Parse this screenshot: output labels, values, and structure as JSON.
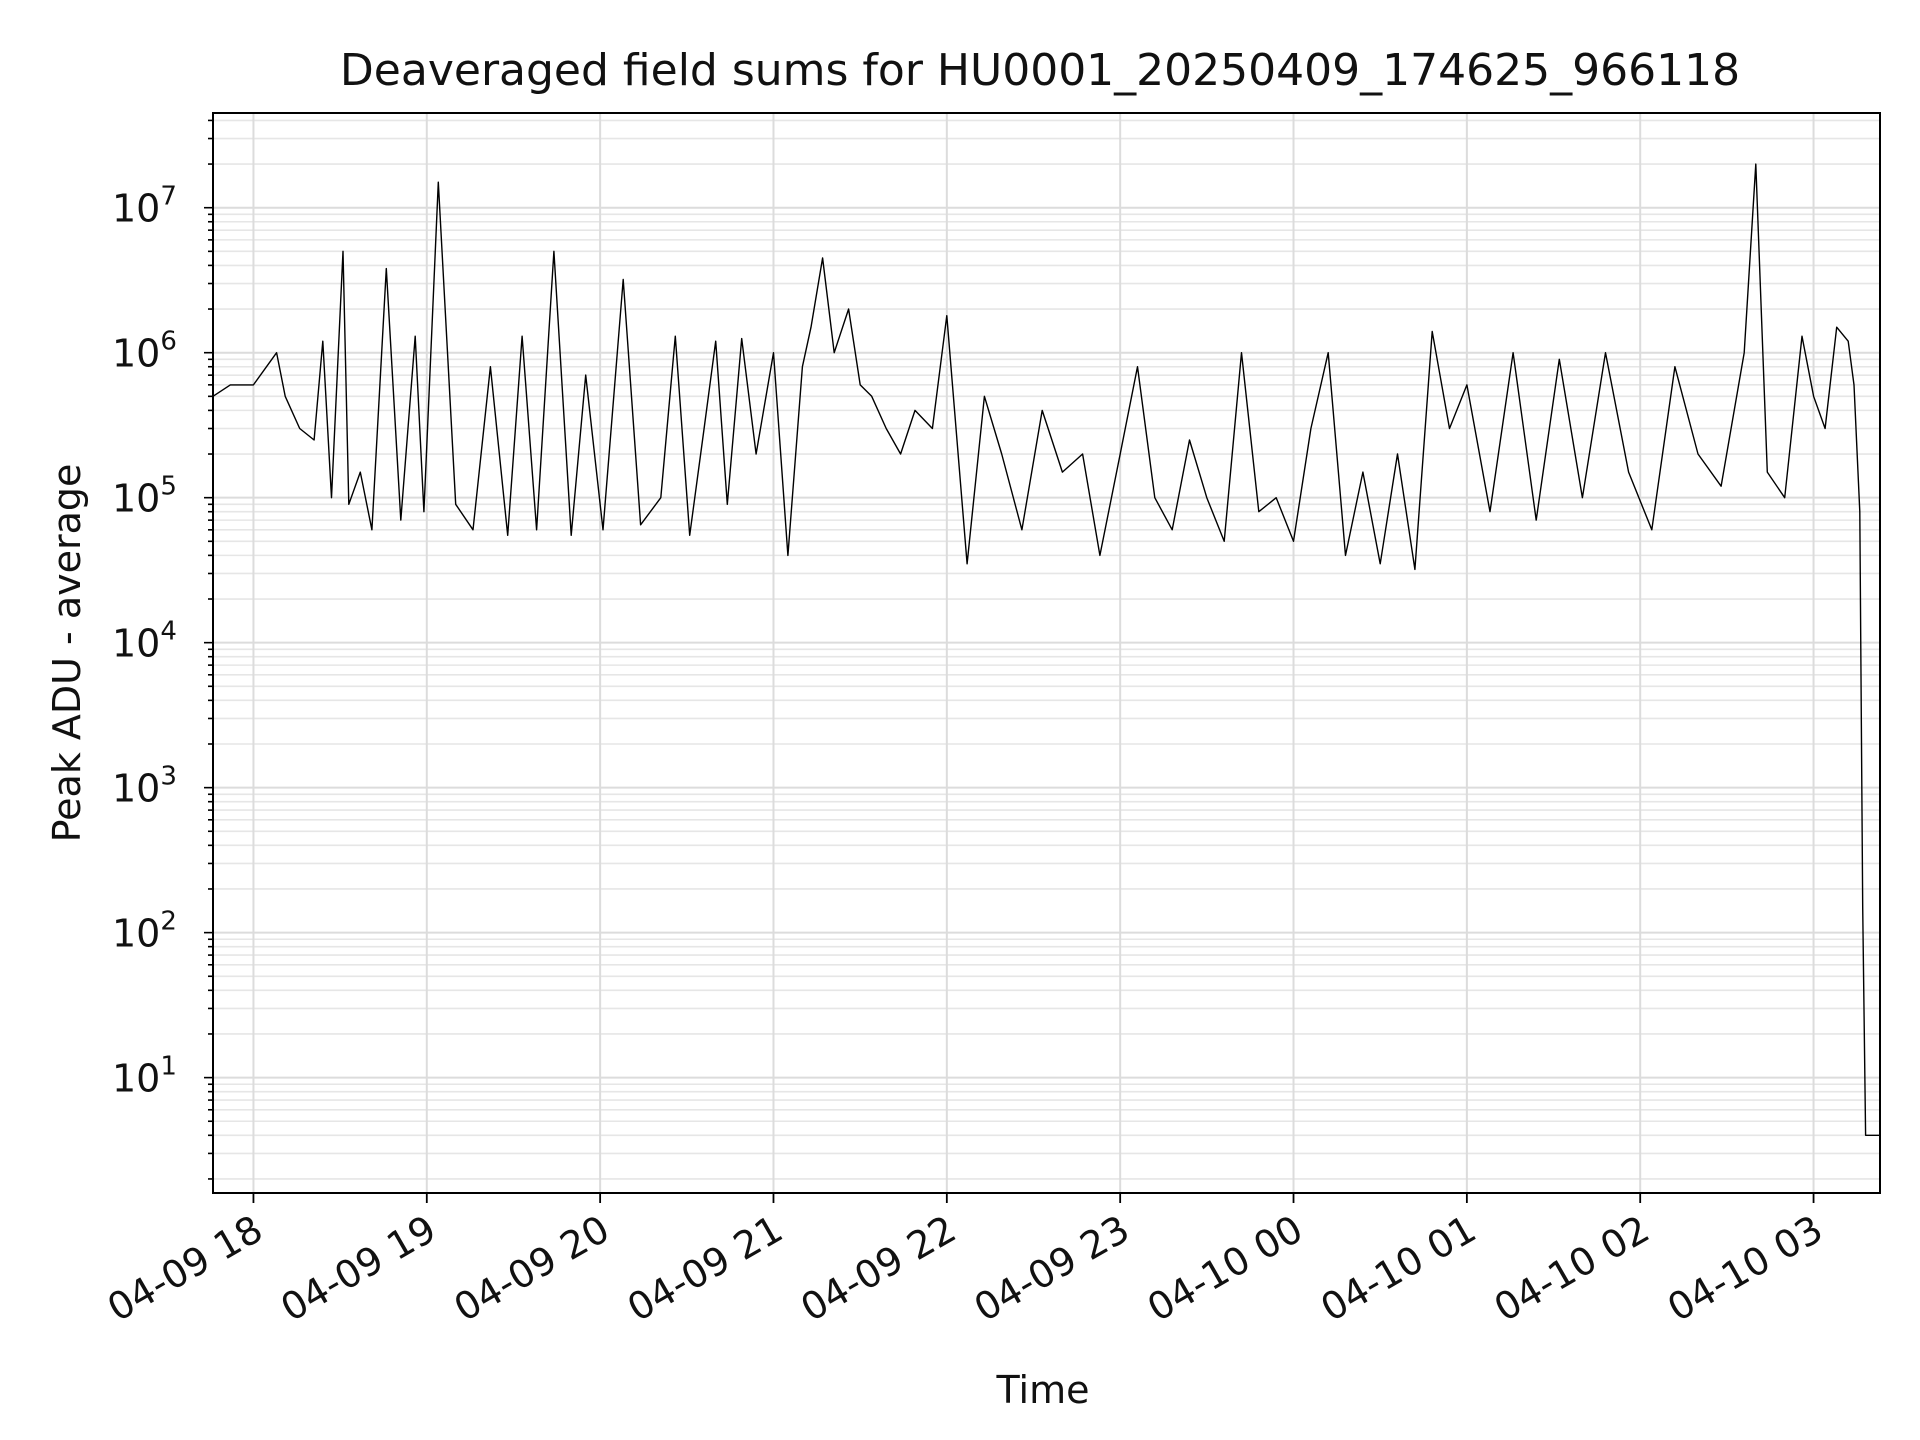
{
  "chart_data": {
    "type": "line",
    "title": "Deaveraged field sums for HU0001_20250409_174625_966118",
    "xlabel": "Time",
    "ylabel": "Peak ADU - average",
    "yscale": "log",
    "ylim": [
      1.6,
      45000000
    ],
    "xlim": [
      "2025-04-09 17:46",
      "2025-04-10 03:23"
    ],
    "grid": true,
    "line_color": "#000000",
    "x_ticks": [
      "04-09 18",
      "04-09 19",
      "04-09 20",
      "04-09 21",
      "04-09 22",
      "04-09 23",
      "04-10 00",
      "04-10 01",
      "04-10 02",
      "04-10 03"
    ],
    "x_tick_times": [
      "2025-04-09 18:00",
      "2025-04-09 19:00",
      "2025-04-09 20:00",
      "2025-04-09 21:00",
      "2025-04-09 22:00",
      "2025-04-09 23:00",
      "2025-04-10 00:00",
      "2025-04-10 01:00",
      "2025-04-10 02:00",
      "2025-04-10 03:00"
    ],
    "y_ticks": [
      {
        "value": 10,
        "base": "10",
        "exp": "1"
      },
      {
        "value": 100,
        "base": "10",
        "exp": "2"
      },
      {
        "value": 1000,
        "base": "10",
        "exp": "3"
      },
      {
        "value": 10000,
        "base": "10",
        "exp": "4"
      },
      {
        "value": 100000,
        "base": "10",
        "exp": "5"
      },
      {
        "value": 1000000,
        "base": "10",
        "exp": "6"
      },
      {
        "value": 10000000,
        "base": "10",
        "exp": "7"
      }
    ],
    "series": [
      {
        "x": [
          "2025-04-09 17:46",
          "2025-04-09 17:52",
          "2025-04-09 18:00",
          "2025-04-09 18:08",
          "2025-04-09 18:11",
          "2025-04-09 18:16",
          "2025-04-09 18:21",
          "2025-04-09 18:24",
          "2025-04-09 18:27",
          "2025-04-09 18:31",
          "2025-04-09 18:33",
          "2025-04-09 18:37",
          "2025-04-09 18:41",
          "2025-04-09 18:46",
          "2025-04-09 18:51",
          "2025-04-09 18:56",
          "2025-04-09 18:59",
          "2025-04-09 19:04",
          "2025-04-09 19:10",
          "2025-04-09 19:16",
          "2025-04-09 19:22",
          "2025-04-09 19:28",
          "2025-04-09 19:33",
          "2025-04-09 19:38",
          "2025-04-09 19:44",
          "2025-04-09 19:50",
          "2025-04-09 19:55",
          "2025-04-09 20:01",
          "2025-04-09 20:08",
          "2025-04-09 20:14",
          "2025-04-09 20:21",
          "2025-04-09 20:26",
          "2025-04-09 20:31",
          "2025-04-09 20:36",
          "2025-04-09 20:40",
          "2025-04-09 20:44",
          "2025-04-09 20:49",
          "2025-04-09 20:54",
          "2025-04-09 21:00",
          "2025-04-09 21:05",
          "2025-04-09 21:10",
          "2025-04-09 21:13",
          "2025-04-09 21:17",
          "2025-04-09 21:21",
          "2025-04-09 21:26",
          "2025-04-09 21:30",
          "2025-04-09 21:34",
          "2025-04-09 21:39",
          "2025-04-09 21:44",
          "2025-04-09 21:49",
          "2025-04-09 21:55",
          "2025-04-09 22:00",
          "2025-04-09 22:07",
          "2025-04-09 22:13",
          "2025-04-09 22:19",
          "2025-04-09 22:26",
          "2025-04-09 22:33",
          "2025-04-09 22:40",
          "2025-04-09 22:47",
          "2025-04-09 22:53",
          "2025-04-09 23:00",
          "2025-04-09 23:06",
          "2025-04-09 23:12",
          "2025-04-09 23:18",
          "2025-04-09 23:24",
          "2025-04-09 23:30",
          "2025-04-09 23:36",
          "2025-04-09 23:42",
          "2025-04-09 23:48",
          "2025-04-09 23:54",
          "2025-04-10 00:00",
          "2025-04-10 00:06",
          "2025-04-10 00:12",
          "2025-04-10 00:18",
          "2025-04-10 00:24",
          "2025-04-10 00:30",
          "2025-04-10 00:36",
          "2025-04-10 00:42",
          "2025-04-10 00:48",
          "2025-04-10 00:54",
          "2025-04-10 01:00",
          "2025-04-10 01:08",
          "2025-04-10 01:16",
          "2025-04-10 01:24",
          "2025-04-10 01:32",
          "2025-04-10 01:40",
          "2025-04-10 01:48",
          "2025-04-10 01:56",
          "2025-04-10 02:04",
          "2025-04-10 02:12",
          "2025-04-10 02:20",
          "2025-04-10 02:28",
          "2025-04-10 02:36",
          "2025-04-10 02:40",
          "2025-04-10 02:44",
          "2025-04-10 02:50",
          "2025-04-10 02:56",
          "2025-04-10 03:00",
          "2025-04-10 03:04",
          "2025-04-10 03:08",
          "2025-04-10 03:12",
          "2025-04-10 03:14",
          "2025-04-10 03:16",
          "2025-04-10 03:17",
          "2025-04-10 03:18",
          "2025-04-10 03:20",
          "2025-04-10 03:23"
        ],
        "y": [
          500000,
          600000,
          600000,
          1000000,
          500000,
          300000,
          250000,
          1200000,
          100000,
          5000000,
          90000,
          150000,
          60000,
          3800000,
          70000,
          1300000,
          80000,
          15000000,
          90000,
          60000,
          800000,
          55000,
          1300000,
          60000,
          5000000,
          55000,
          700000,
          60000,
          3200000,
          65000,
          100000,
          1300000,
          55000,
          300000,
          1200000,
          90000,
          1250000,
          200000,
          1000000,
          40000,
          800000,
          1500000,
          4500000,
          1000000,
          2000000,
          600000,
          500000,
          300000,
          200000,
          400000,
          300000,
          1800000,
          35000,
          500000,
          200000,
          60000,
          400000,
          150000,
          200000,
          40000,
          200000,
          800000,
          100000,
          60000,
          250000,
          100000,
          50000,
          1000000,
          80000,
          100000,
          50000,
          300000,
          1000000,
          40000,
          150000,
          35000,
          200000,
          32000,
          1400000,
          300000,
          600000,
          80000,
          1000000,
          70000,
          900000,
          100000,
          1000000,
          150000,
          60000,
          800000,
          200000,
          120000,
          1000000,
          20000000,
          150000,
          100000,
          1300000,
          500000,
          300000,
          1500000,
          1200000,
          600000,
          80000,
          150,
          4,
          4,
          4
        ]
      }
    ]
  }
}
